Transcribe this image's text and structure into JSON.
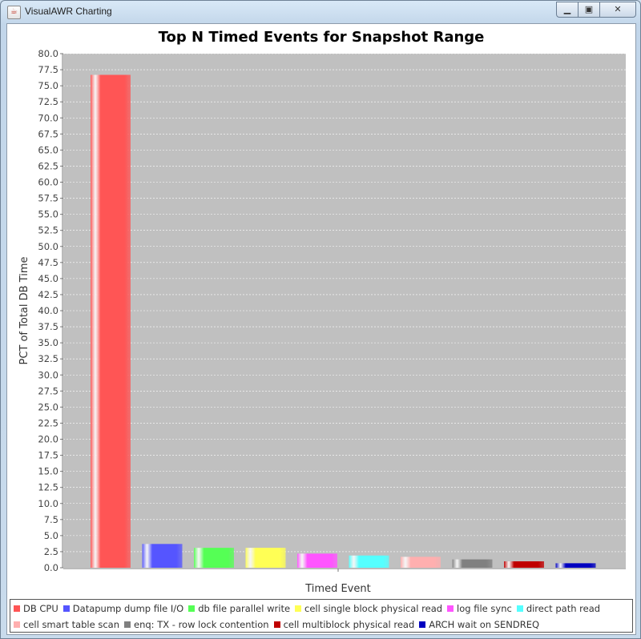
{
  "window": {
    "title": "VisualAWR Charting",
    "icon": "java-cup-icon"
  },
  "controls": {
    "minimize": "minimize-icon",
    "maximize": "maximize-icon",
    "close": "close-icon"
  },
  "chart_data": {
    "type": "bar",
    "title": "Top N Timed Events for Snapshot Range",
    "xlabel": "Timed Event",
    "ylabel": "PCT of Total DB Time",
    "ylim": [
      0,
      80
    ],
    "ytick_step": 2.5,
    "grid": true,
    "legend_position": "bottom",
    "plot_background": "#c0c0c0",
    "series": [
      {
        "name": "DB CPU",
        "value": 76.7,
        "color": "#ff5555"
      },
      {
        "name": "Datapump dump file I/O",
        "value": 3.7,
        "color": "#5555ff"
      },
      {
        "name": "db file parallel write",
        "value": 3.1,
        "color": "#55ff55"
      },
      {
        "name": "cell single block physical read",
        "value": 3.1,
        "color": "#ffff55"
      },
      {
        "name": "log file sync",
        "value": 2.2,
        "color": "#ff55ff"
      },
      {
        "name": "direct path read",
        "value": 1.9,
        "color": "#55ffff"
      },
      {
        "name": "cell smart table scan",
        "value": 1.7,
        "color": "#ffafaf"
      },
      {
        "name": "enq: TX - row lock contention",
        "value": 1.3,
        "color": "#808080"
      },
      {
        "name": "cell multiblock physical read",
        "value": 1.0,
        "color": "#c00000"
      },
      {
        "name": "ARCH wait on SENDREQ",
        "value": 0.7,
        "color": "#0000c0"
      }
    ]
  }
}
